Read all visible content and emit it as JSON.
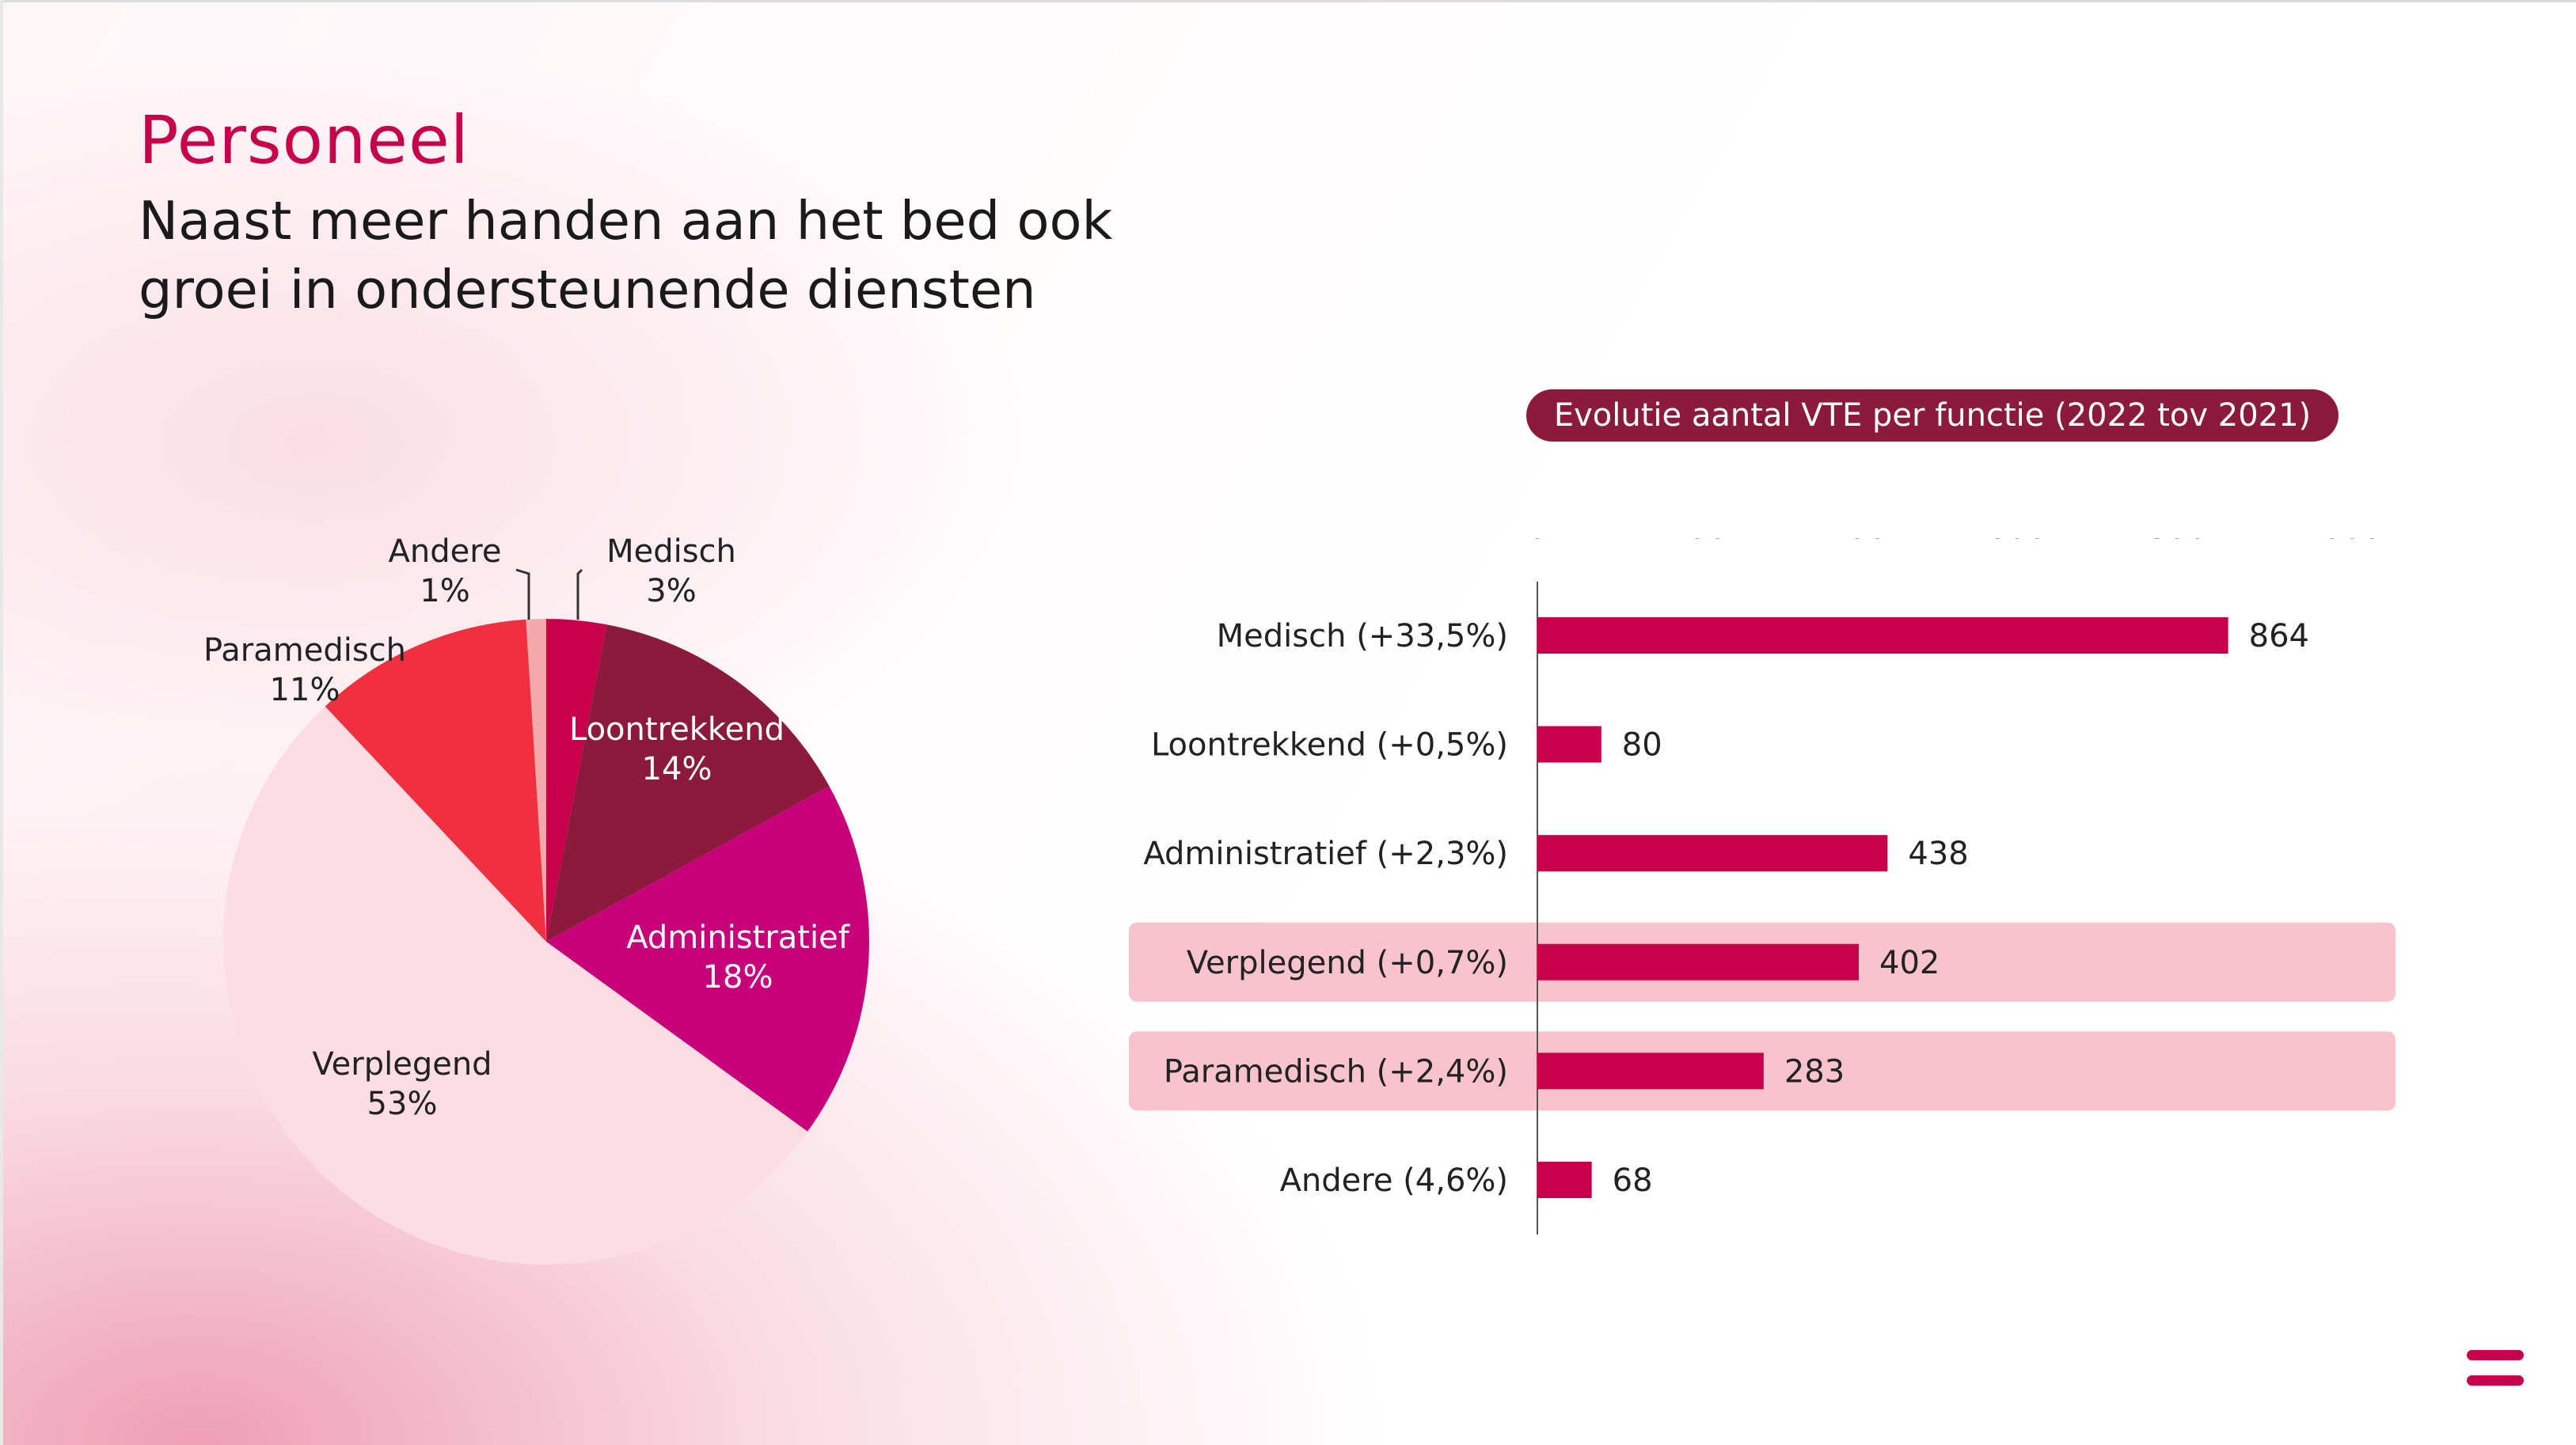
{
  "slide": {
    "title": "Personeel",
    "subtitle": "Naast meer handen aan het bed ook groei in ondersteunende diensten"
  },
  "colors": {
    "accent": "#c8004b",
    "pill_bg": "#8c1a3c",
    "bar": "#c8004b",
    "highlight_row": "#f8c3cc"
  },
  "logo_icon": "menu-lines-icon",
  "chart_data": [
    {
      "type": "pie",
      "categories": [
        "Medisch",
        "Loontrekkend",
        "Administratief",
        "Verplegend",
        "Paramedisch",
        "Andere"
      ],
      "values": [
        3,
        14,
        18,
        53,
        11,
        1
      ],
      "value_labels": [
        "3%",
        "14%",
        "18%",
        "53%",
        "11%",
        "1%"
      ],
      "colors": [
        "#c8004b",
        "#8c1a3c",
        "#c8007a",
        "#fcdde3",
        "#f0303e",
        "#f3a9a9"
      ],
      "label_colors": [
        "#222222",
        "#ffffff",
        "#ffffff",
        "#222222",
        "#222222",
        "#222222"
      ]
    },
    {
      "type": "bar",
      "orientation": "horizontal",
      "title": "Evolutie aantal VTE per functie (2022 tov 2021)",
      "categories": [
        "Medisch (+33,5%)",
        "Loontrekkend (+0,5%)",
        "Administratief (+2,3%)",
        "Verplegend (+0,7%)",
        "Paramedisch (+2,4%)",
        "Andere (4,6%)"
      ],
      "values": [
        864,
        80,
        438,
        402,
        283,
        68
      ],
      "data_labels": [
        "864",
        "80",
        "438",
        "402",
        "283",
        "68"
      ],
      "highlighted": [
        "Verplegend (+0,7%)",
        "Paramedisch (+2,4%)"
      ],
      "xlim": [
        0,
        1000
      ],
      "xticks": [
        0,
        200,
        400,
        600,
        800,
        1000
      ],
      "xtick_labels": [
        "0",
        "200",
        "400",
        "600",
        "800",
        "1 000"
      ],
      "axis_position": "top",
      "grid": false
    }
  ]
}
